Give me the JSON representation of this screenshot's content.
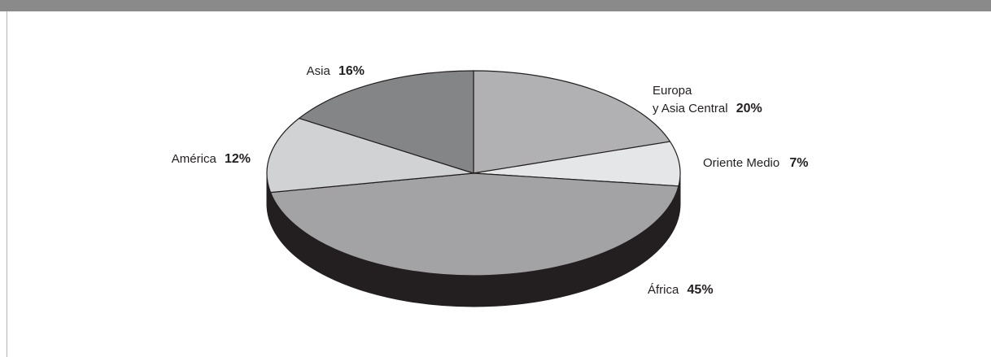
{
  "chart_data": {
    "type": "pie",
    "title": "",
    "slices": [
      {
        "name": "Europa y Asia Central",
        "label_line1": "Europa",
        "label_line2": "y Asia Central",
        "value": 20,
        "value_label": "20%",
        "color": "#b1b1b3"
      },
      {
        "name": "Oriente Medio",
        "label": "Oriente Medio",
        "value": 7,
        "value_label": "7%",
        "color": "#e5e6e7"
      },
      {
        "name": "África",
        "label": "África",
        "value": 45,
        "value_label": "45%",
        "color": "#a3a3a5"
      },
      {
        "name": "América",
        "label": "América",
        "value": 12,
        "value_label": "12%",
        "color": "#d1d2d4"
      },
      {
        "name": "Asia",
        "label": "Asia",
        "value": 16,
        "value_label": "16%",
        "color": "#848587"
      }
    ],
    "start": "12 o'clock",
    "direction": "clockwise",
    "style": "3d-tilted",
    "side_color": "#231f20",
    "outline_color": "#231f20",
    "legend": "none"
  }
}
